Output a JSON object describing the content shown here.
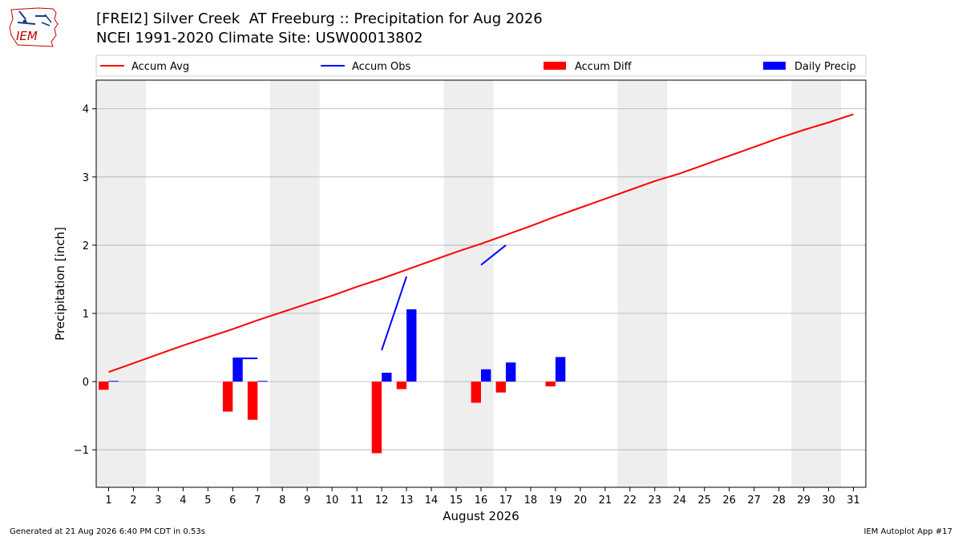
{
  "header": {
    "title_line1": "[FREI2] Silver Creek  AT Freeburg :: Precipitation for Aug 2026",
    "title_line2": "NCEI 1991-2020 Climate Site: USW00013802",
    "logo_text": "IEM"
  },
  "footer": {
    "left": "Generated at 21 Aug 2026 6:40 PM CDT in 0.53s",
    "right": "IEM Autoplot App #17"
  },
  "colors": {
    "avg": "#ff0000",
    "obs": "#0000ff",
    "diff": "#ff0000",
    "daily": "#0000ff",
    "weekend_band": "#eeeeee",
    "grid": "#b0b0b0"
  },
  "chart_data": {
    "type": "bar",
    "xlabel": "August 2026",
    "ylabel": "Precipitation [inch]",
    "xlim": [
      0.5,
      31.5
    ],
    "ylim": [
      -1.55,
      4.42
    ],
    "yticks": [
      -1,
      0,
      1,
      2,
      3,
      4
    ],
    "ytick_labels": [
      "−1",
      "0",
      "1",
      "2",
      "3",
      "4"
    ],
    "xticks": [
      1,
      2,
      3,
      4,
      5,
      6,
      7,
      8,
      9,
      10,
      11,
      12,
      13,
      14,
      15,
      16,
      17,
      18,
      19,
      20,
      21,
      22,
      23,
      24,
      25,
      26,
      27,
      28,
      29,
      30,
      31
    ],
    "grid": "y",
    "legend_position": "top",
    "weekend_days": [
      1,
      2,
      8,
      9,
      15,
      16,
      22,
      23,
      29,
      30
    ],
    "series": [
      {
        "name": "Accum Avg",
        "kind": "line",
        "days": [
          1,
          2,
          3,
          4,
          5,
          6,
          7,
          8,
          9,
          10,
          11,
          12,
          13,
          14,
          15,
          16,
          17,
          18,
          19,
          20,
          21,
          22,
          23,
          24,
          25,
          26,
          27,
          28,
          29,
          30,
          31
        ],
        "values": [
          0.14,
          0.27,
          0.4,
          0.53,
          0.65,
          0.77,
          0.9,
          1.02,
          1.14,
          1.26,
          1.39,
          1.51,
          1.64,
          1.77,
          1.9,
          2.02,
          2.15,
          2.28,
          2.42,
          2.55,
          2.68,
          2.81,
          2.94,
          3.05,
          3.18,
          3.31,
          3.44,
          3.57,
          3.69,
          3.8,
          3.92
        ]
      },
      {
        "name": "Accum Obs",
        "kind": "line_segments",
        "segments": [
          {
            "days": [
              6,
              7
            ],
            "values": [
              0.34,
              0.34
            ]
          },
          {
            "days": [
              12,
              13
            ],
            "values": [
              0.46,
              1.54
            ]
          },
          {
            "days": [
              16,
              17
            ],
            "values": [
              1.71,
              2.0
            ]
          }
        ]
      },
      {
        "name": "Accum Diff",
        "kind": "bar",
        "offset": -0.2,
        "days": [
          1,
          6,
          7,
          12,
          13,
          16,
          17,
          19
        ],
        "values": [
          -0.12,
          -0.44,
          -0.56,
          -1.05,
          -0.11,
          -0.31,
          -0.16,
          -0.07
        ]
      },
      {
        "name": "Daily Precip",
        "kind": "bar",
        "offset": 0.2,
        "days": [
          1,
          6,
          7,
          12,
          13,
          16,
          17,
          19
        ],
        "values": [
          0.01,
          0.33,
          0.01,
          0.13,
          1.06,
          0.18,
          0.28,
          0.36
        ]
      }
    ]
  }
}
